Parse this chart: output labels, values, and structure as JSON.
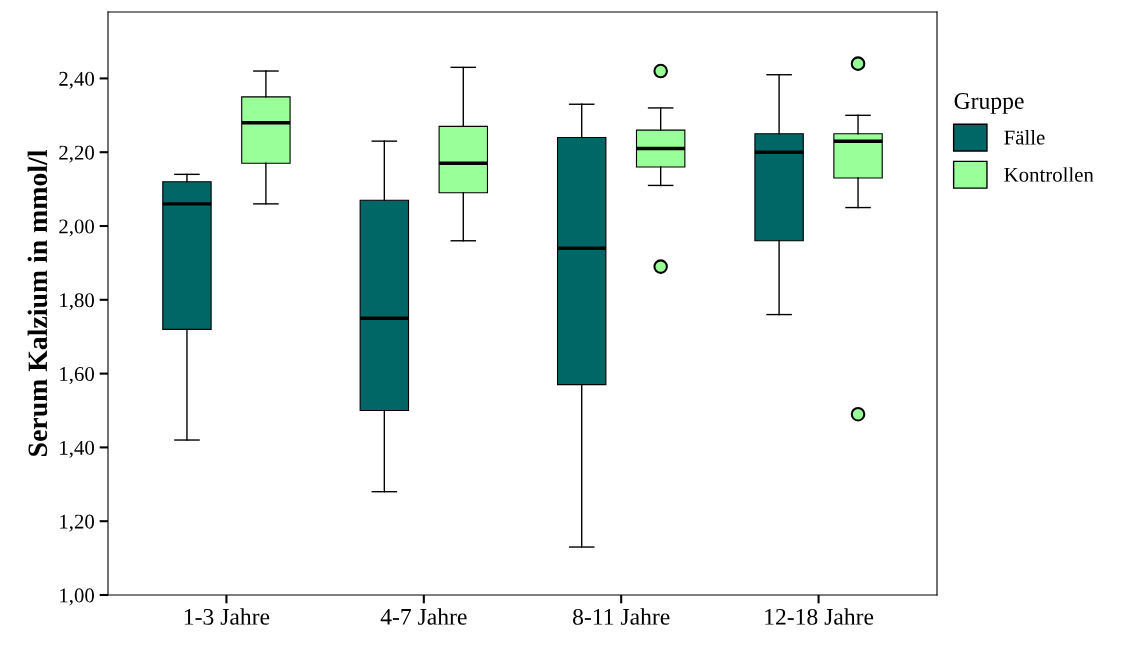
{
  "chart_data": {
    "type": "box",
    "ylabel": "Serum Kalzium in mmol/l",
    "legend_title": "Gruppe",
    "legend": "right",
    "grid": false,
    "categories": [
      "1-3 Jahre",
      "4-7 Jahre",
      "8-11 Jahre",
      "12-18 Jahre"
    ],
    "ylim": [
      1.0,
      2.58
    ],
    "yticks": [
      {
        "value": 1.0,
        "label": "1,00"
      },
      {
        "value": 1.2,
        "label": "1,20"
      },
      {
        "value": 1.4,
        "label": "1,40"
      },
      {
        "value": 1.6,
        "label": "1,60"
      },
      {
        "value": 1.8,
        "label": "1,80"
      },
      {
        "value": 2.0,
        "label": "2,00"
      },
      {
        "value": 2.2,
        "label": "2,20"
      },
      {
        "value": 2.4,
        "label": "2,40"
      }
    ],
    "series": [
      {
        "name": "Fälle",
        "color": "#006666",
        "boxes": [
          {
            "low": 1.42,
            "q1": 1.72,
            "median": 2.06,
            "q3": 2.12,
            "high": 2.14
          },
          {
            "low": 1.28,
            "q1": 1.5,
            "median": 1.75,
            "q3": 2.07,
            "high": 2.23
          },
          {
            "low": 1.13,
            "q1": 1.57,
            "median": 1.94,
            "q3": 2.24,
            "high": 2.33
          },
          {
            "low": 1.76,
            "q1": 1.96,
            "median": 2.2,
            "q3": 2.25,
            "high": 2.41
          }
        ]
      },
      {
        "name": "Kontrollen",
        "color": "#99ff99",
        "boxes": [
          {
            "low": 2.06,
            "q1": 2.17,
            "median": 2.28,
            "q3": 2.35,
            "high": 2.42
          },
          {
            "low": 1.96,
            "q1": 2.09,
            "median": 2.17,
            "q3": 2.27,
            "high": 2.43
          },
          {
            "low": 2.11,
            "q1": 2.16,
            "median": 2.21,
            "q3": 2.26,
            "high": 2.32,
            "outliers": [
              2.42,
              1.89
            ]
          },
          {
            "low": 2.05,
            "q1": 2.13,
            "median": 2.23,
            "q3": 2.25,
            "high": 2.3,
            "outliers": [
              2.44,
              1.49
            ]
          }
        ]
      }
    ]
  }
}
